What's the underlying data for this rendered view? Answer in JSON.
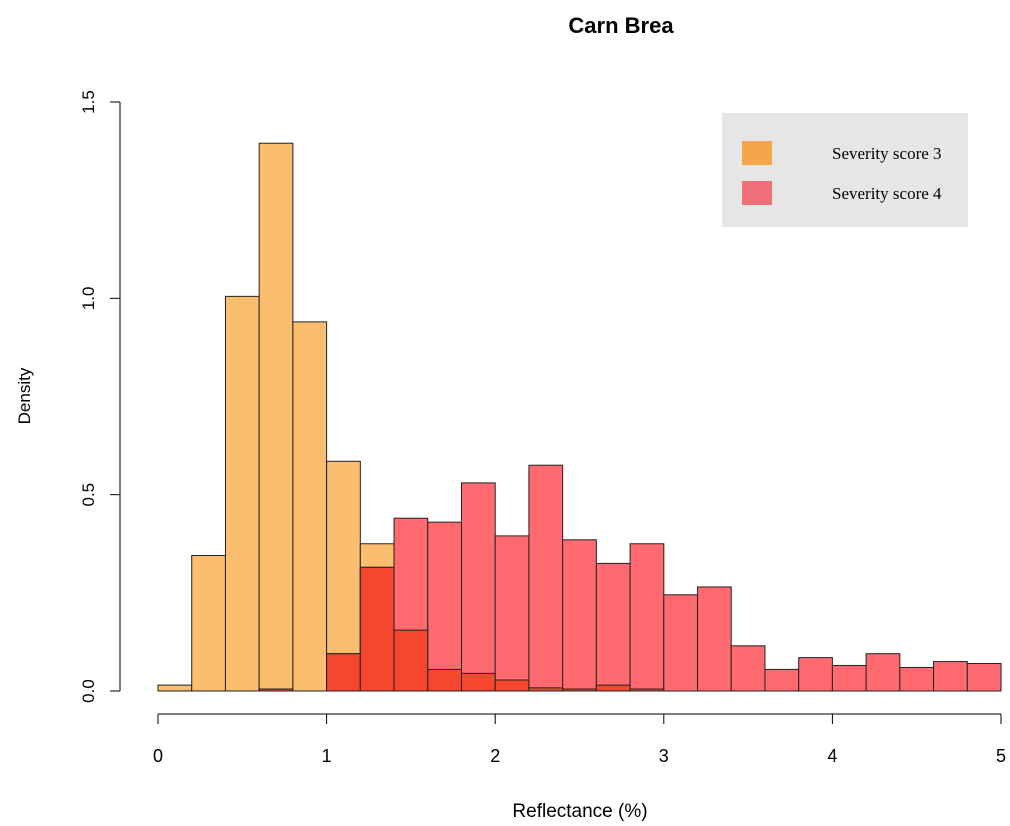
{
  "chart_data": {
    "type": "bar",
    "subtype": "overlaid-histogram",
    "title": "Carn Brea",
    "xlabel": "Reflectance (%)",
    "ylabel": "Density",
    "xlim": [
      0,
      5
    ],
    "ylim": [
      0,
      1.5
    ],
    "x_ticks": [
      "0",
      "1",
      "2",
      "3",
      "4",
      "5"
    ],
    "y_ticks": [
      "0.0",
      "0.5",
      "1.0",
      "1.5"
    ],
    "bin_width": 0.2,
    "bin_starts": [
      0.0,
      0.2,
      0.4,
      0.6,
      0.8,
      1.0,
      1.2,
      1.4,
      1.6,
      1.8,
      2.0,
      2.2,
      2.4,
      2.6,
      2.8,
      3.0,
      3.2,
      3.4,
      3.6,
      3.8,
      4.0,
      4.2,
      4.4,
      4.6,
      4.8
    ],
    "grid": false,
    "legend_position": "top-right",
    "series": [
      {
        "name": "Severity score 3",
        "color": "#F5A54A",
        "fill": "#FBBD6E",
        "values": [
          0.015,
          0.345,
          1.005,
          1.395,
          0.94,
          0.585,
          0.375,
          0.155,
          0.055,
          0.045,
          0.028,
          0.008,
          0.005,
          0.015,
          0.005,
          0,
          0,
          0,
          0,
          0,
          0,
          0,
          0,
          0,
          0
        ]
      },
      {
        "name": "Severity score 4",
        "color": "#F0707A",
        "fill": "#FF6A70",
        "values": [
          0,
          0,
          0,
          0.005,
          0,
          0.095,
          0.315,
          0.44,
          0.43,
          0.53,
          0.395,
          0.575,
          0.385,
          0.325,
          0.375,
          0.245,
          0.265,
          0.115,
          0.055,
          0.085,
          0.065,
          0.095,
          0.06,
          0.075,
          0.07
        ]
      }
    ],
    "overlap_color": "#F4472E"
  }
}
